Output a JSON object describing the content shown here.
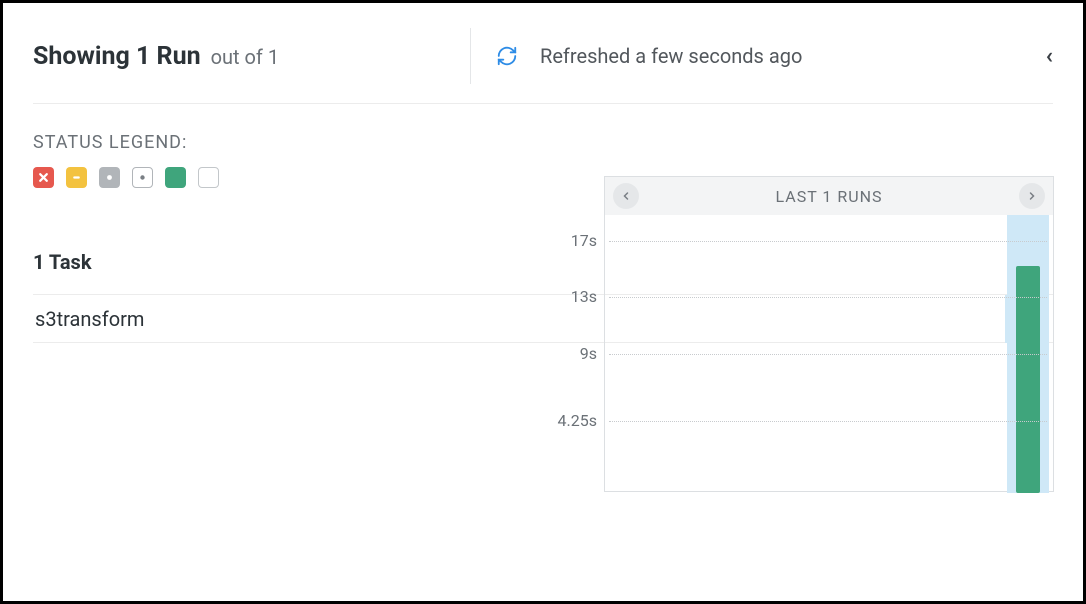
{
  "header": {
    "title": "Showing 1 Run",
    "subtitle": "out of 1",
    "refresh_text": "Refreshed a few seconds ago",
    "collapse_glyph": "‹‹"
  },
  "legend": {
    "label": "STATUS LEGEND:",
    "items": [
      {
        "kind": "failed",
        "bg": "#e6584e",
        "stroke": "#ffffff"
      },
      {
        "kind": "warning",
        "bg": "#f3c23f",
        "stroke": "#ffffff"
      },
      {
        "kind": "inactive",
        "bg": "#b1b5b9",
        "stroke": "#ffffff"
      },
      {
        "kind": "queued",
        "bg": "#ffffff",
        "border": "#b1b5b9",
        "dot": "#7a7f85"
      },
      {
        "kind": "success",
        "bg": "#3fa57c"
      },
      {
        "kind": "empty",
        "bg": "#ffffff",
        "border": "#c3c7ca"
      }
    ]
  },
  "tasks": {
    "header": "1 Task",
    "rows": [
      {
        "name": "s3transform",
        "status_color": "#3fa57c"
      }
    ]
  },
  "chart": {
    "title": "LAST 1 RUNS",
    "type": "bar",
    "y_ticks": [
      "17s",
      "13s",
      "9s",
      "4.25s"
    ],
    "y_max_seconds": 17,
    "tick_seconds": [
      17,
      13,
      9,
      4.25
    ],
    "bars": [
      {
        "value_seconds": 15.2,
        "color": "#3fa57c"
      }
    ],
    "grid_color": "#c8cbce",
    "panel_border": "#dcdfe2",
    "header_bg": "#f3f4f5",
    "highlight_bg": "#cfe8f7"
  },
  "colors": {
    "text_primary": "#2c3338",
    "text_muted": "#6b7177",
    "divider": "#ececec",
    "accent_blue": "#2e8ce6"
  }
}
